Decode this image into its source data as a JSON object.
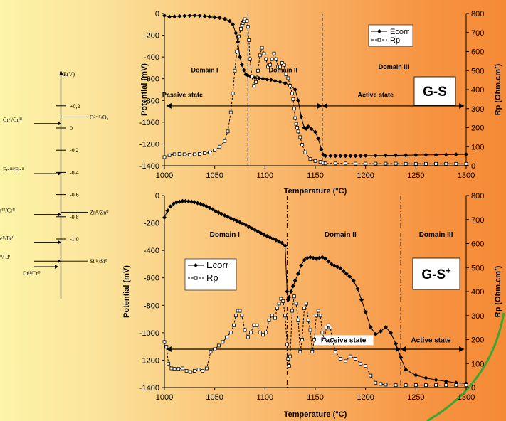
{
  "chart_data": [
    {
      "type": "line",
      "id": "G-S",
      "title": "",
      "xlabel": "Temperature (°C)",
      "ylabel": "Potential (mV)",
      "y2label": "Rp (Ohm.cm²)",
      "xlim": [
        1000,
        1300
      ],
      "ylim": [
        -1400,
        0
      ],
      "y2lim": [
        0,
        800
      ],
      "xticks": [
        "1000",
        "1050",
        "1100",
        "1150",
        "1200",
        "1250",
        "1300"
      ],
      "yticks": [
        "0",
        "-200",
        "-400",
        "-600",
        "-800",
        "-1000",
        "-1200",
        "-1400"
      ],
      "y2ticks": [
        "0",
        "100",
        "200",
        "300",
        "400",
        "500",
        "600",
        "700",
        "800"
      ],
      "legend_position": "top-right",
      "box_label": "G-S",
      "domains": [
        {
          "label": "Domain I",
          "x": 1040,
          "y": -540
        },
        {
          "label": "Domain II",
          "x": 1118,
          "y": -540
        },
        {
          "label": "Domain III",
          "x": 1228,
          "y": -510
        }
      ],
      "states": [
        {
          "label": "Passive state",
          "x": 1018,
          "y": -770
        },
        {
          "label": "Active state",
          "x": 1210,
          "y": -770
        }
      ],
      "state_arrows": [
        {
          "from": 1002,
          "to": 1157,
          "y": -850
        },
        {
          "from": 1157,
          "to": 1298,
          "y": -850
        }
      ],
      "vlines": [
        1083,
        1157
      ],
      "series": [
        {
          "name": "Ecorr",
          "axis": "left",
          "marker": "diamond",
          "x": [
            1000,
            1005,
            1010,
            1015,
            1020,
            1025,
            1030,
            1035,
            1040,
            1045,
            1050,
            1055,
            1060,
            1065,
            1068,
            1071,
            1073,
            1075,
            1077,
            1079,
            1081,
            1083,
            1086,
            1090,
            1094,
            1098,
            1102,
            1106,
            1110,
            1115,
            1120,
            1125,
            1130,
            1133,
            1136,
            1139,
            1141,
            1143,
            1146,
            1150,
            1153,
            1156,
            1158,
            1160,
            1165,
            1170,
            1175,
            1180,
            1185,
            1190,
            1195,
            1200,
            1210,
            1220,
            1230,
            1240,
            1250,
            1260,
            1270,
            1280,
            1290,
            1300
          ],
          "y": [
            -20,
            -30,
            -28,
            -25,
            -22,
            -20,
            -18,
            -20,
            -25,
            -30,
            -35,
            -40,
            -50,
            -70,
            -100,
            -180,
            -260,
            -400,
            -470,
            -520,
            -560,
            -570,
            -580,
            -590,
            -595,
            -600,
            -605,
            -610,
            -620,
            -630,
            -640,
            -660,
            -700,
            -800,
            -950,
            -1050,
            -1060,
            -1040,
            -1060,
            -1090,
            -1150,
            -1250,
            -1300,
            -1310,
            -1310,
            -1310,
            -1310,
            -1310,
            -1310,
            -1310,
            -1310,
            -1308,
            -1308,
            -1306,
            -1305,
            -1304,
            -1302,
            -1300,
            -1300,
            -1298,
            -1297,
            -1295
          ]
        },
        {
          "name": "Rp",
          "axis": "right",
          "marker": "square",
          "x": [
            1000,
            1005,
            1010,
            1015,
            1020,
            1025,
            1030,
            1035,
            1040,
            1045,
            1050,
            1055,
            1060,
            1063,
            1066,
            1068,
            1070,
            1072,
            1074,
            1076,
            1077,
            1078,
            1079,
            1080,
            1082,
            1083,
            1084,
            1085,
            1087,
            1089,
            1091,
            1093,
            1095,
            1097,
            1099,
            1101,
            1103,
            1105,
            1107,
            1109,
            1111,
            1113,
            1115,
            1117,
            1119,
            1121,
            1123,
            1125,
            1127,
            1128,
            1129,
            1130,
            1131,
            1132,
            1133,
            1135,
            1137,
            1140,
            1145,
            1150,
            1155,
            1158,
            1160,
            1170,
            1180,
            1190,
            1200,
            1210,
            1220,
            1230,
            1240,
            1250,
            1260,
            1270,
            1280,
            1290,
            1300
          ],
          "y": [
            45,
            55,
            60,
            62,
            60,
            58,
            60,
            62,
            65,
            70,
            80,
            100,
            130,
            180,
            280,
            380,
            500,
            600,
            680,
            720,
            740,
            750,
            760,
            770,
            760,
            730,
            660,
            560,
            470,
            420,
            440,
            500,
            580,
            620,
            590,
            560,
            520,
            530,
            560,
            590,
            560,
            520,
            520,
            540,
            530,
            480,
            460,
            420,
            380,
            350,
            300,
            250,
            220,
            200,
            180,
            150,
            110,
            70,
            35,
            25,
            20,
            15,
            12,
            12,
            12,
            11,
            11,
            11,
            11,
            11,
            10,
            10,
            10,
            10,
            10,
            10,
            10
          ]
        }
      ]
    },
    {
      "type": "line",
      "id": "G-S+",
      "title": "",
      "xlabel": "Temperature (°C)",
      "ylabel": "Potential (mV)",
      "y2label": "Rp (Ohm.cm²)",
      "xlim": [
        1000,
        1300
      ],
      "ylim": [
        -1400,
        0
      ],
      "y2lim": [
        0,
        800
      ],
      "xticks": [
        "1000",
        "1050",
        "1100",
        "1150",
        "1200",
        "1250",
        "1300"
      ],
      "yticks": [
        "0",
        "-200",
        "-400",
        "-600",
        "-800",
        "-1000",
        "-1200",
        "-1400"
      ],
      "y2ticks": [
        "0",
        "100",
        "200",
        "300",
        "400",
        "500",
        "600",
        "700",
        "800"
      ],
      "legend_position": "middle-left",
      "box_label": "G-S",
      "box_label_sup": "+",
      "domains": [
        {
          "label": "Domain I",
          "x": 1060,
          "y": -300
        },
        {
          "label": "Domain II",
          "x": 1175,
          "y": -300
        },
        {
          "label": "Domain III",
          "x": 1270,
          "y": -300
        }
      ],
      "states": [
        {
          "label": "Passive state",
          "x": 1178,
          "y": -1070
        },
        {
          "label": "Active state",
          "x": 1265,
          "y": -1070
        }
      ],
      "state_arrows": [
        {
          "from": 1002,
          "to": 1235,
          "y": -1120
        },
        {
          "from": 1235,
          "to": 1298,
          "y": -1120
        }
      ],
      "vlines": [
        1122,
        1235
      ],
      "series": [
        {
          "name": "Ecorr",
          "axis": "left",
          "marker": "diamond",
          "x": [
            1000,
            1003,
            1006,
            1009,
            1012,
            1015,
            1018,
            1021,
            1024,
            1027,
            1030,
            1033,
            1036,
            1039,
            1042,
            1045,
            1048,
            1051,
            1054,
            1057,
            1060,
            1063,
            1066,
            1069,
            1072,
            1075,
            1078,
            1081,
            1084,
            1087,
            1090,
            1093,
            1096,
            1099,
            1102,
            1105,
            1108,
            1111,
            1114,
            1117,
            1120,
            1122,
            1123,
            1124,
            1126,
            1128,
            1130,
            1133,
            1136,
            1139,
            1142,
            1145,
            1148,
            1151,
            1154,
            1157,
            1160,
            1163,
            1166,
            1169,
            1172,
            1175,
            1178,
            1181,
            1184,
            1188,
            1192,
            1196,
            1200,
            1205,
            1210,
            1215,
            1220,
            1225,
            1230,
            1235,
            1240,
            1250,
            1260,
            1270,
            1280,
            1290,
            1300
          ],
          "y": [
            -160,
            -110,
            -80,
            -60,
            -50,
            -45,
            -40,
            -40,
            -42,
            -45,
            -48,
            -55,
            -60,
            -70,
            -80,
            -90,
            -100,
            -115,
            -125,
            -135,
            -145,
            -155,
            -165,
            -175,
            -185,
            -195,
            -205,
            -215,
            -228,
            -240,
            -250,
            -262,
            -275,
            -285,
            -295,
            -305,
            -315,
            -325,
            -335,
            -345,
            -365,
            -700,
            -760,
            -740,
            -700,
            -660,
            -620,
            -570,
            -510,
            -470,
            -455,
            -450,
            -455,
            -460,
            -455,
            -450,
            -460,
            -480,
            -500,
            -510,
            -520,
            -530,
            -550,
            -570,
            -590,
            -620,
            -680,
            -760,
            -850,
            -960,
            -1010,
            -990,
            -960,
            -1000,
            -1080,
            -1180,
            -1270,
            -1310,
            -1330,
            -1345,
            -1355,
            -1365,
            -1370
          ]
        },
        {
          "name": "Rp",
          "axis": "right",
          "marker": "square",
          "x": [
            1000,
            1002,
            1004,
            1007,
            1010,
            1014,
            1018,
            1022,
            1026,
            1030,
            1034,
            1038,
            1042,
            1046,
            1050,
            1054,
            1058,
            1062,
            1066,
            1069,
            1071,
            1073,
            1075,
            1077,
            1080,
            1083,
            1086,
            1089,
            1092,
            1095,
            1098,
            1101,
            1104,
            1107,
            1110,
            1112,
            1114,
            1116,
            1118,
            1120,
            1122,
            1123,
            1124,
            1125,
            1127,
            1129,
            1131,
            1133,
            1135,
            1137,
            1139,
            1141,
            1143,
            1145,
            1147,
            1149,
            1151,
            1153,
            1155,
            1157,
            1159,
            1161,
            1163,
            1165,
            1167,
            1170,
            1175,
            1180,
            1185,
            1190,
            1195,
            1200,
            1205,
            1210,
            1215,
            1220,
            1230,
            1240,
            1250,
            1260,
            1270,
            1280,
            1290,
            1300
          ],
          "y": [
            190,
            170,
            100,
            80,
            78,
            78,
            80,
            70,
            65,
            70,
            75,
            70,
            80,
            150,
            160,
            175,
            190,
            210,
            230,
            260,
            300,
            320,
            320,
            300,
            240,
            210,
            230,
            260,
            260,
            230,
            220,
            230,
            280,
            300,
            290,
            330,
            350,
            370,
            360,
            300,
            180,
            120,
            90,
            130,
            320,
            380,
            350,
            280,
            150,
            200,
            330,
            350,
            280,
            240,
            150,
            200,
            300,
            320,
            300,
            230,
            200,
            250,
            260,
            250,
            200,
            150,
            120,
            110,
            130,
            120,
            100,
            90,
            50,
            20,
            15,
            12,
            10,
            10,
            10,
            10,
            10,
            10,
            10,
            10
          ]
        }
      ]
    }
  ],
  "sidebar": {
    "axis_label": "E(V)",
    "ticks": [
      {
        "label": "+0,2",
        "v": 0.2
      },
      {
        "label": "0",
        "v": 0.0
      },
      {
        "label": "-0,2",
        "v": -0.2
      },
      {
        "label": "-0,4",
        "v": -0.4
      },
      {
        "label": "-0,6",
        "v": -0.6
      },
      {
        "label": "-0,8",
        "v": -0.8
      },
      {
        "label": "-1,0",
        "v": -1.0
      }
    ],
    "couples": [
      {
        "label": "O²⁻ᴵᴵ/O₂",
        "side": "right",
        "v": 0.1
      },
      {
        "label": "Crᵛᴵ/Crᴵᴵᴵ",
        "side": "left",
        "v": 0.04
      },
      {
        "label": "Fe ᴵᴵᴵ/Fe ᴵᴵ",
        "side": "left",
        "v": -0.41
      },
      {
        "label": "rᴵᴵᴵ/Crᴵᴵ",
        "side": "left",
        "v": -0.78
      },
      {
        "label": "Znᴵᴵ/Zn⁰",
        "side": "right",
        "v": -0.76
      },
      {
        "label": "eᴵᴵ/Fe⁰",
        "side": "left",
        "v": -1.03
      },
      {
        "label": "ᴵᴵ/ B⁰",
        "side": "left",
        "v": -1.2
      },
      {
        "label": "Crᴵᴵ/Cr⁰",
        "side": "left",
        "v": -1.25
      },
      {
        "label": "Si ᴵᵛ/Si⁰",
        "side": "right",
        "v": -1.2
      }
    ]
  },
  "colors": {
    "frame": "#000000",
    "ecorr": "#000000",
    "rp_marker_fill": "#ffffff",
    "arc": "#3aa633"
  }
}
